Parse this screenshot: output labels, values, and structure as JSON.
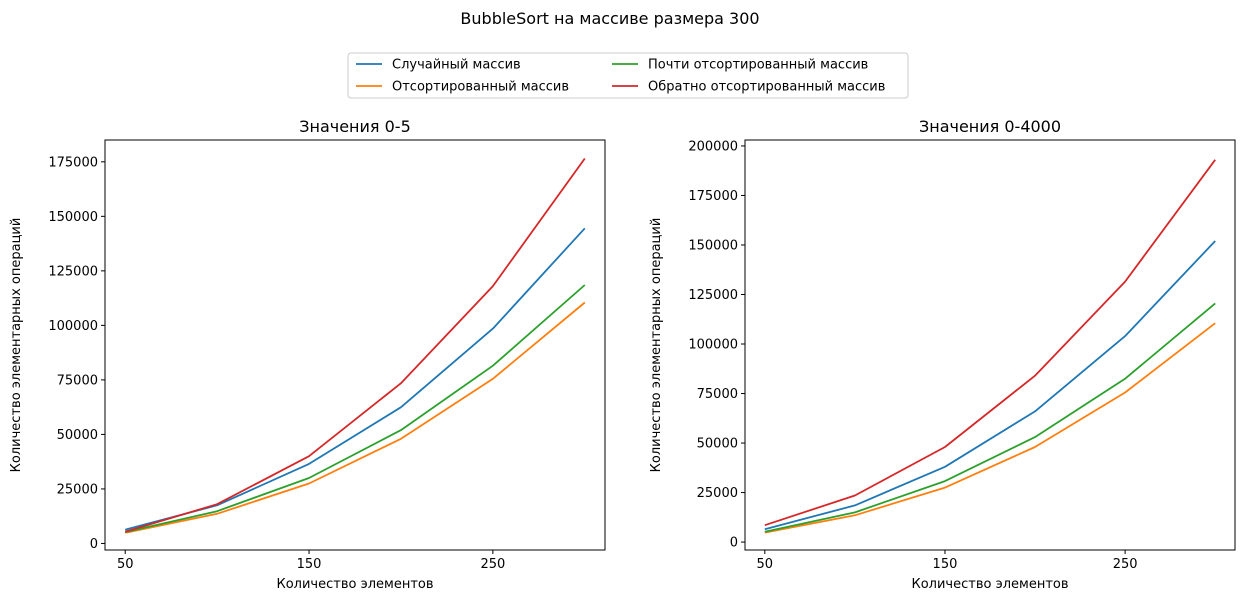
{
  "figure": {
    "suptitle": "BubbleSort на массиве размера 300"
  },
  "legend": {
    "placement": "top-center",
    "columns": 2
  },
  "chart_data": [
    {
      "type": "line",
      "title": "Значения 0-5",
      "xlabel": "Количество элементов",
      "ylabel": "Количество элементарных операций",
      "x": [
        50,
        100,
        150,
        200,
        250,
        300
      ],
      "xticks": [
        50,
        150,
        250
      ],
      "yticks": [
        0,
        25000,
        50000,
        75000,
        100000,
        125000,
        150000,
        175000
      ],
      "xlim": [
        39,
        311
      ],
      "ylim": [
        -3000,
        185000
      ],
      "grid": false,
      "series": [
        {
          "name": "Случайный массив",
          "color": "#1f77b4",
          "values": [
            6300,
            17500,
            36500,
            62500,
            98500,
            144500
          ]
        },
        {
          "name": "Отсортированный массив",
          "color": "#ff7f0e",
          "values": [
            4900,
            13600,
            27500,
            48000,
            75500,
            110500
          ]
        },
        {
          "name": "Почти отсортированный массив",
          "color": "#2ca02c",
          "values": [
            5200,
            14800,
            30000,
            52000,
            81500,
            118500
          ]
        },
        {
          "name": "Обратно отсортированный массив",
          "color": "#d62728",
          "values": [
            5400,
            18000,
            40000,
            73500,
            118000,
            176500
          ]
        }
      ]
    },
    {
      "type": "line",
      "title": "Значения 0-4000",
      "xlabel": "Количество элементов",
      "ylabel": "Количество элементарных операций",
      "x": [
        50,
        100,
        150,
        200,
        250,
        300
      ],
      "xticks": [
        50,
        150,
        250
      ],
      "yticks": [
        0,
        25000,
        50000,
        75000,
        100000,
        125000,
        150000,
        175000,
        200000
      ],
      "xlim": [
        39,
        311
      ],
      "ylim": [
        -4000,
        203000
      ],
      "grid": false,
      "series": [
        {
          "name": "Случайный массив",
          "color": "#1f77b4",
          "values": [
            6500,
            18500,
            38000,
            66000,
            104000,
            152000
          ]
        },
        {
          "name": "Отсортированный массив",
          "color": "#ff7f0e",
          "values": [
            4800,
            13500,
            27500,
            48000,
            75500,
            110500
          ]
        },
        {
          "name": "Почти отсортированный массив",
          "color": "#2ca02c",
          "values": [
            5200,
            15000,
            30800,
            53000,
            82500,
            120500
          ]
        },
        {
          "name": "Обратно отсортированный массив",
          "color": "#d62728",
          "values": [
            8500,
            23500,
            48000,
            84000,
            131500,
            193000
          ]
        }
      ]
    }
  ]
}
